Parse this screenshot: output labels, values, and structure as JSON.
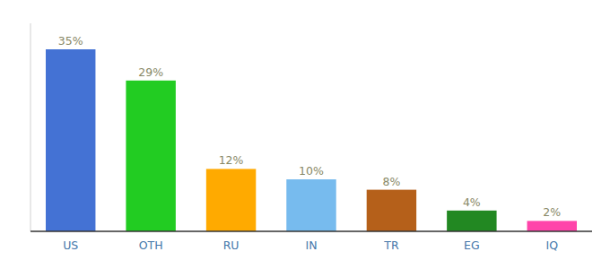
{
  "chart_data": {
    "type": "bar",
    "categories": [
      "US",
      "OTH",
      "RU",
      "IN",
      "TR",
      "EG",
      "IQ"
    ],
    "values": [
      35,
      29,
      12,
      10,
      8,
      4,
      2
    ],
    "value_labels": [
      "35%",
      "29%",
      "12%",
      "10%",
      "8%",
      "4%",
      "2%"
    ],
    "colors": [
      "#4472d4",
      "#22cc22",
      "#ffaa00",
      "#77bbee",
      "#b5601a",
      "#228822",
      "#ff44aa"
    ],
    "ylim": [
      0,
      40
    ],
    "data_labels": true,
    "tick_labels": "x"
  }
}
